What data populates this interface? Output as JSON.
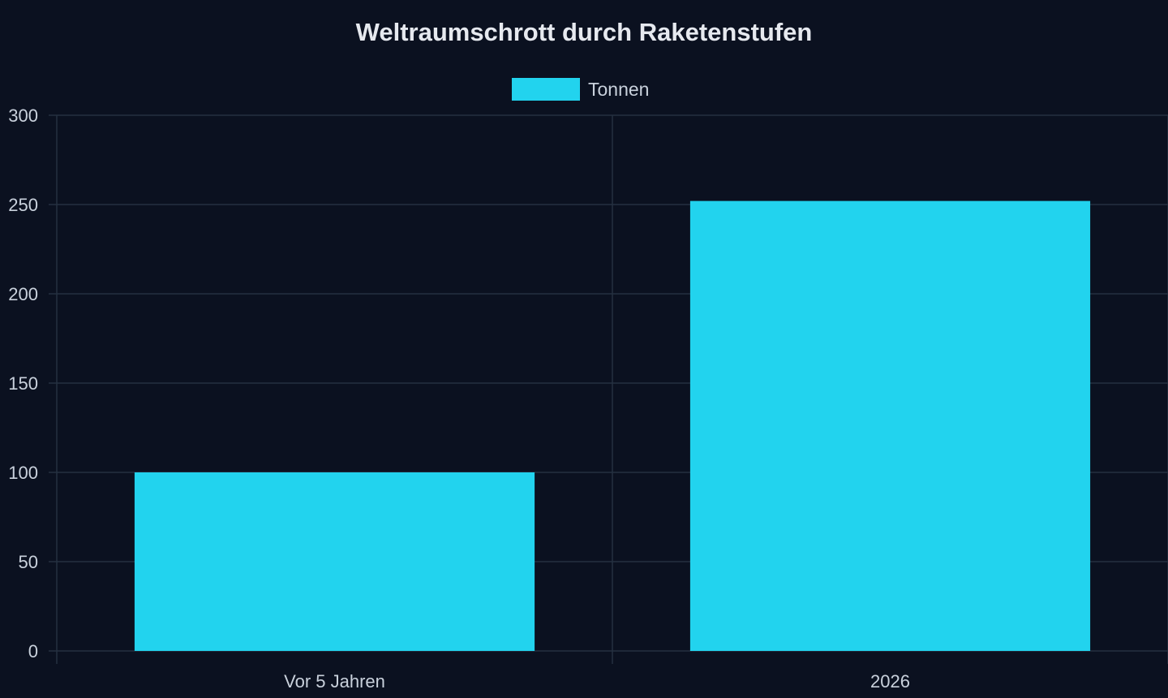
{
  "colors": {
    "background": "#0b1120",
    "grid": "#253041",
    "bar": "#22d3ee",
    "text": "#c9d1dc",
    "title": "#e6e9ef"
  },
  "chart_data": {
    "type": "bar",
    "title": "Weltraumschrott durch Raketenstufen",
    "xlabel": "",
    "ylabel": "",
    "categories": [
      "Vor 5 Jahren",
      "2026"
    ],
    "series": [
      {
        "name": "Tonnen",
        "values": [
          100,
          252
        ]
      }
    ],
    "ylim": [
      0,
      300
    ],
    "yticks": [
      0,
      50,
      100,
      150,
      200,
      250,
      300
    ],
    "grid": true,
    "legend": "top-center"
  }
}
